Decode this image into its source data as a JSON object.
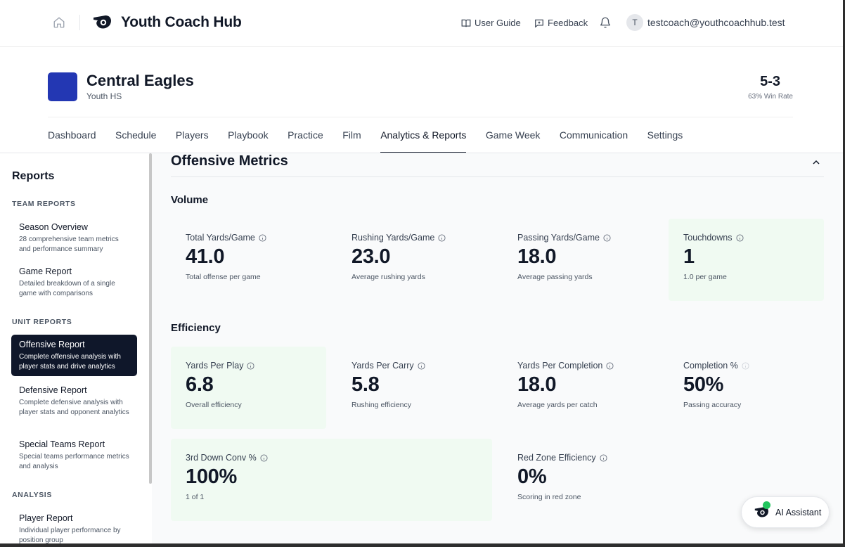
{
  "app": {
    "title": "Youth Coach Hub"
  },
  "header": {
    "user_guide": "User Guide",
    "feedback": "Feedback",
    "avatar_initial": "T",
    "user_email": "testcoach@youthcoachhub.test"
  },
  "team": {
    "name": "Central Eagles",
    "level": "Youth HS",
    "record": "5-3",
    "win_rate": "63% Win Rate",
    "color": "#2337b3"
  },
  "nav": {
    "tabs": [
      {
        "label": "Dashboard"
      },
      {
        "label": "Schedule"
      },
      {
        "label": "Players"
      },
      {
        "label": "Playbook"
      },
      {
        "label": "Practice"
      },
      {
        "label": "Film"
      },
      {
        "label": "Analytics & Reports",
        "active": true
      },
      {
        "label": "Game Week"
      },
      {
        "label": "Communication"
      },
      {
        "label": "Settings"
      }
    ]
  },
  "sidebar": {
    "title": "Reports",
    "sections": {
      "team": "TEAM REPORTS",
      "unit": "UNIT REPORTS",
      "analysis": "ANALYSIS"
    },
    "items": [
      {
        "title": "Season Overview",
        "desc": "28 comprehensive team metrics and performance summary"
      },
      {
        "title": "Game Report",
        "desc": "Detailed breakdown of a single game with comparisons"
      },
      {
        "title": "Offensive Report",
        "desc": "Complete offensive analysis with player stats and drive analytics",
        "active": true
      },
      {
        "title": "Defensive Report",
        "desc": "Complete defensive analysis with player stats and opponent analytics"
      },
      {
        "title": "Special Teams Report",
        "desc": "Special teams performance metrics and analysis"
      },
      {
        "title": "Player Report",
        "desc": "Individual player performance by position group"
      }
    ]
  },
  "main": {
    "title": "Offensive Metrics",
    "volume": {
      "title": "Volume",
      "cards": [
        {
          "label": "Total Yards/Game",
          "value": "41.0",
          "sub": "Total offense per game"
        },
        {
          "label": "Rushing Yards/Game",
          "value": "23.0",
          "sub": "Average rushing yards"
        },
        {
          "label": "Passing Yards/Game",
          "value": "18.0",
          "sub": "Average passing yards"
        },
        {
          "label": "Touchdowns",
          "value": "1",
          "sub": "1.0 per game",
          "highlight": true
        }
      ]
    },
    "efficiency": {
      "title": "Efficiency",
      "cards": [
        {
          "label": "Yards Per Play",
          "value": "6.8",
          "sub": "Overall efficiency",
          "highlight": true
        },
        {
          "label": "Yards Per Carry",
          "value": "5.8",
          "sub": "Rushing efficiency"
        },
        {
          "label": "Yards Per Completion",
          "value": "18.0",
          "sub": "Average yards per catch"
        },
        {
          "label": "Completion %",
          "value": "50%",
          "sub": "Passing accuracy"
        },
        {
          "label": "3rd Down Conv %",
          "value": "100%",
          "sub": "1 of 1",
          "highlight": true
        },
        {
          "label": "Red Zone Efficiency",
          "value": "0%",
          "sub": "Scoring in red zone"
        }
      ]
    }
  },
  "assistant": {
    "label": "AI Assistant"
  },
  "colors": {
    "highlight_card": "#f0faf2",
    "active_sidebar": "#0f172a",
    "badge": "#22c55e"
  }
}
